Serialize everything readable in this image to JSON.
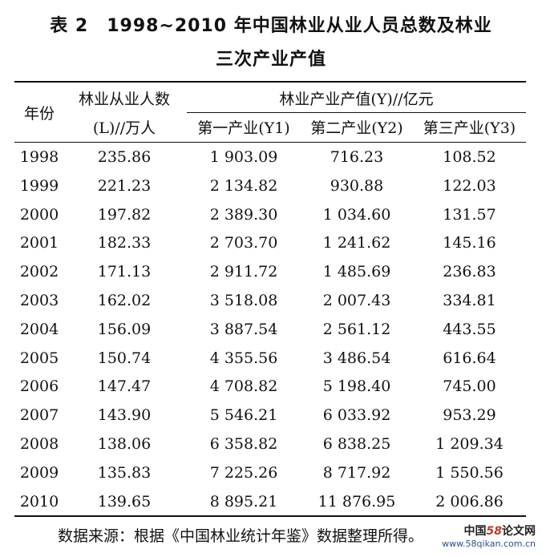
{
  "title": {
    "line1": "表 2　1998~2010 年中国林业从业人员总数及林业",
    "line2": "三次产业产值"
  },
  "table": {
    "header": {
      "year": "年份",
      "workers_line1": "林业从业人数",
      "workers_line2": "(L)//万人",
      "output_group": "林业产业产值(Y)//亿元",
      "y1": "第一产业(Y1)",
      "y2": "第二产业(Y2)",
      "y3": "第三产业(Y3)"
    },
    "rows": [
      [
        "1998",
        "235.86",
        "1 903.09",
        "716.23",
        "108.52"
      ],
      [
        "1999",
        "221.23",
        "2 134.82",
        "930.88",
        "122.03"
      ],
      [
        "2000",
        "197.82",
        "2 389.30",
        "1 034.60",
        "131.57"
      ],
      [
        "2001",
        "182.33",
        "2 703.70",
        "1 241.62",
        "145.16"
      ],
      [
        "2002",
        "171.13",
        "2 911.72",
        "1 485.69",
        "236.83"
      ],
      [
        "2003",
        "162.02",
        "3 518.08",
        "2 007.43",
        "334.81"
      ],
      [
        "2004",
        "156.09",
        "3 887.54",
        "2 561.12",
        "443.55"
      ],
      [
        "2005",
        "150.74",
        "4 355.56",
        "3 486.54",
        "616.64"
      ],
      [
        "2006",
        "147.47",
        "4 708.82",
        "5 198.40",
        "745.00"
      ],
      [
        "2007",
        "143.90",
        "5 546.21",
        "6 033.92",
        "953.29"
      ],
      [
        "2008",
        "138.06",
        "6 358.82",
        "6 838.25",
        "1 209.34"
      ],
      [
        "2009",
        "135.83",
        "7 225.26",
        "8 717.92",
        "1 550.56"
      ],
      [
        "2010",
        "139.65",
        "8 895.21",
        "11 876.95",
        "2 006.86"
      ]
    ]
  },
  "footer": "数据来源：根据《中国林业统计年鉴》数据整理所得。",
  "watermark": {
    "logo_prefix": "中国",
    "logo_num": "58",
    "logo_suffix": "论文网",
    "url": "www.58qikan.com.cn"
  }
}
